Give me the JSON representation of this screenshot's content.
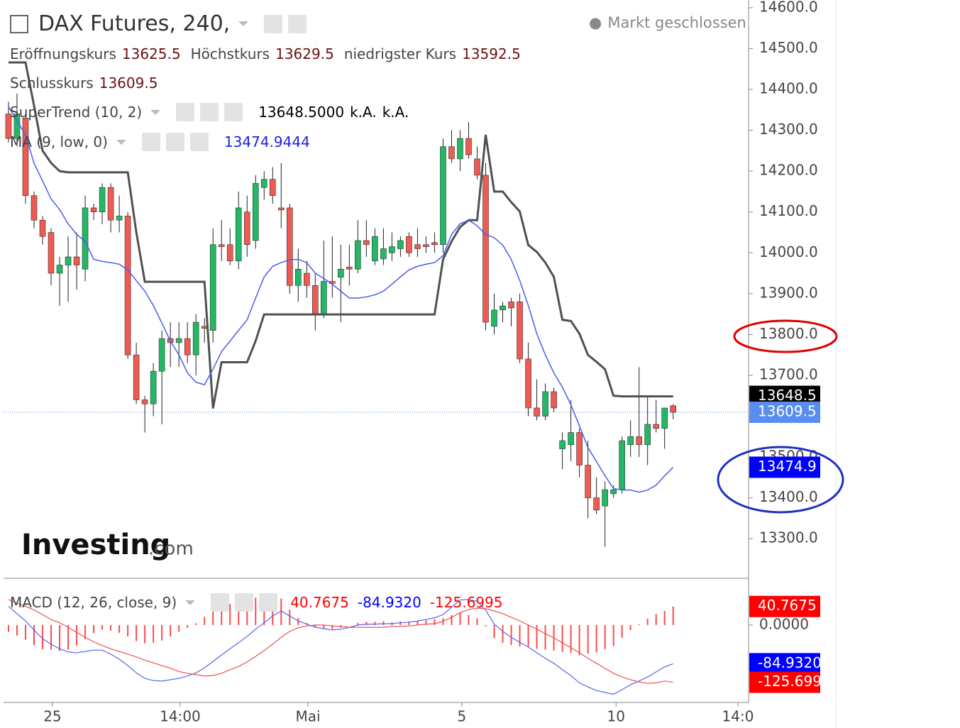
{
  "chart_data": [
    {
      "type": "candlestick",
      "title": "DAX Futures, 240,",
      "status": "Markt geschlossen",
      "ohlc_legend": [
        {
          "name": "Eröffnungskurs",
          "value": 13625.5
        },
        {
          "name": "Höchstkurs",
          "value": 13629.5
        },
        {
          "name": "niedrigster Kurs",
          "value": 13592.5
        },
        {
          "name": "Schlusskurs",
          "value": 13609.5
        }
      ],
      "up_color": "#22b866",
      "down_color": "#ef5a52",
      "open": [
        14340,
        14280,
        14330,
        14140,
        14080,
        14050,
        13950,
        13970,
        13990,
        13960,
        14110,
        14100,
        14160,
        14080,
        14090,
        13750,
        13640,
        13630,
        13710,
        13790,
        13780,
        13790,
        13750,
        13820,
        13810,
        14020,
        14020,
        13980,
        14100,
        14030,
        14160,
        14180,
        14110,
        14110,
        13920,
        13950,
        13920,
        13850,
        13930,
        13940,
        13965,
        13960,
        14030,
        13980,
        13985,
        14000,
        14010,
        14040,
        14020,
        14020,
        14025,
        14020,
        14260,
        14230,
        14280,
        14230,
        14190,
        13820,
        13860,
        13880,
        13880,
        13740,
        13620,
        13600,
        13660,
        13520,
        13530,
        13560,
        13480,
        13400,
        13380,
        13410,
        13420,
        13530,
        13550,
        13530,
        13580,
        13570,
        13625.5
      ],
      "high": [
        14370,
        14390,
        14340,
        14150,
        14090,
        14060,
        13990,
        14040,
        14050,
        14140,
        14120,
        14170,
        14170,
        14140,
        14100,
        13780,
        13650,
        13730,
        13810,
        13830,
        13830,
        13830,
        13850,
        13840,
        14060,
        14080,
        14060,
        14150,
        14140,
        14190,
        14200,
        14210,
        14220,
        14120,
        14010,
        13980,
        13950,
        14030,
        14040,
        14020,
        14020,
        14080,
        14080,
        14060,
        14060,
        14050,
        14040,
        14050,
        14060,
        14040,
        14050,
        14280,
        14300,
        14300,
        14320,
        14260,
        14220,
        13900,
        13880,
        13890,
        13900,
        13780,
        13690,
        13680,
        13670,
        13560,
        13640,
        13570,
        13540,
        13450,
        13440,
        13430,
        13550,
        13590,
        13720,
        13650,
        13640,
        13620,
        13629.5
      ],
      "low": [
        14270,
        14260,
        14120,
        14060,
        14020,
        13920,
        13870,
        13880,
        13910,
        13930,
        14080,
        14070,
        14050,
        14050,
        13740,
        13630,
        13560,
        13600,
        13580,
        13720,
        13720,
        13730,
        13700,
        13780,
        13780,
        13980,
        13970,
        13960,
        13990,
        14010,
        14130,
        14120,
        14060,
        13900,
        13880,
        13890,
        13810,
        13840,
        13890,
        13830,
        13920,
        13950,
        13990,
        13970,
        13970,
        13980,
        13990,
        13990,
        13990,
        14000,
        14000,
        14000,
        14220,
        14200,
        14230,
        14180,
        13810,
        13800,
        13830,
        13820,
        13730,
        13600,
        13590,
        13590,
        13610,
        13470,
        13490,
        13450,
        13350,
        13360,
        13280,
        13400,
        13410,
        13500,
        13500,
        13480,
        13560,
        13520,
        13592.5
      ],
      "close": [
        14280,
        14340,
        14140,
        14080,
        14040,
        13950,
        13970,
        13990,
        13970,
        14110,
        14100,
        14160,
        14080,
        14090,
        13750,
        13640,
        13630,
        13710,
        13790,
        13780,
        13790,
        13750,
        13830,
        13815,
        14020,
        14015,
        13980,
        14110,
        14020,
        14170,
        14180,
        14140,
        14105,
        13920,
        13960,
        13920,
        13850,
        13930,
        13925,
        13960,
        13960,
        14030,
        14020,
        14040,
        14010,
        14015,
        14030,
        14000,
        14010,
        14015,
        14020,
        14260,
        14230,
        14280,
        14240,
        14190,
        13830,
        13860,
        13870,
        13865,
        13740,
        13620,
        13600,
        13660,
        13620,
        13540,
        13560,
        13480,
        13400,
        13370,
        13420,
        13420,
        13540,
        13550,
        13530,
        13580,
        13570,
        13620,
        13609.5
      ],
      "series": [
        {
          "name": "SuperTrend (10, 2)",
          "color": "#505050",
          "legend_values": [
            {
              "value": 13648.5,
              "label": "13648.5000"
            },
            "k.A.",
            "k.A."
          ],
          "values": [
            14466,
            14466,
            14466,
            14360,
            14250,
            14220,
            14200,
            14197,
            14197,
            14197,
            14197,
            14197,
            14197,
            14197,
            14197,
            14050,
            13929,
            13929,
            13929,
            13929,
            13929,
            13929,
            13929,
            13929,
            13619,
            13732,
            13732,
            13732,
            13732,
            13784,
            13849,
            13849,
            13849,
            13849,
            13849,
            13849,
            13849,
            13849,
            13849,
            13849,
            13849,
            13849,
            13849,
            13849,
            13849,
            13849,
            13849,
            13849,
            13849,
            13849,
            13849,
            13984,
            14028,
            14063,
            14080,
            14080,
            14289,
            14150,
            14150,
            14124,
            14101,
            14019,
            14002,
            13976,
            13941,
            13836,
            13833,
            13802,
            13750,
            13733,
            13715,
            13650,
            13648.5,
            13648.5,
            13648.5,
            13648.5,
            13648.5,
            13648.5,
            13648.5
          ]
        },
        {
          "name": "MA (9, low, 0)",
          "color": "#4a5cf0",
          "legend_values": [
            13474.9444
          ],
          "values": [
            14358,
            14323,
            14289,
            14219,
            14176,
            14132,
            14106,
            14071,
            14045,
            14028,
            13984,
            13979,
            13976,
            13972,
            13958,
            13932,
            13906,
            13871,
            13828,
            13784,
            13750,
            13706,
            13683,
            13677,
            13715,
            13758,
            13784,
            13810,
            13836,
            13889,
            13941,
            13967,
            13976,
            13983,
            13984,
            13976,
            13950,
            13937,
            13923,
            13906,
            13889,
            13889,
            13892,
            13897,
            13906,
            13923,
            13941,
            13958,
            13967,
            13972,
            13976,
            13993,
            14045,
            14071,
            14080,
            14066,
            14045,
            14037,
            14019,
            13984,
            13932,
            13871,
            13802,
            13750,
            13706,
            13671,
            13628,
            13576,
            13523,
            13489,
            13454,
            13423,
            13419,
            13419,
            13414,
            13419,
            13431,
            13454,
            13474.9444
          ]
        }
      ],
      "price_labels": [
        {
          "value": 13648.5,
          "color": "#000000"
        },
        {
          "value": 13609.5,
          "color": "#5a8df0"
        },
        {
          "value": 13474.9,
          "color": "#0000ff"
        }
      ],
      "ylim": [
        13203,
        14619
      ],
      "yticks": [
        {
          "value": 14600,
          "label": "14600.0"
        },
        {
          "value": 14500,
          "label": "14500.0"
        },
        {
          "value": 14400,
          "label": "14400.0"
        },
        {
          "value": 14300,
          "label": "14300.0"
        },
        {
          "value": 14200,
          "label": "14200.0"
        },
        {
          "value": 14100,
          "label": "14100.0"
        },
        {
          "value": 14000,
          "label": "14000.0"
        },
        {
          "value": 13900,
          "label": "13900.0"
        },
        {
          "value": 13800,
          "label": "13800.0"
        },
        {
          "value": 13700,
          "label": "13700.0"
        },
        {
          "value": 13600,
          "label": "13600.0"
        },
        {
          "value": 13500,
          "label": "13500.0"
        },
        {
          "value": 13400,
          "label": "13400.0"
        },
        {
          "value": 13300,
          "label": "13300.0"
        }
      ],
      "watermark": {
        "brand": "Investing",
        "suffix": ".com"
      }
    },
    {
      "type": "macd",
      "title": "MACD (12, 26, close, 9)",
      "legend_values": [
        {
          "value": 40.7675,
          "color": "#ff0000"
        },
        {
          "value": -84.932,
          "label": "-84.9320",
          "color": "#0000ff"
        },
        {
          "value": -125.6995,
          "color": "#ff0000"
        }
      ],
      "histogram": {
        "color": "#ff4a4a",
        "values": [
          -15,
          -23,
          -32,
          -44,
          -53,
          -54,
          -57,
          -54,
          -45,
          -31,
          -18,
          -10,
          -12,
          -17,
          -25,
          -35,
          -40,
          -39,
          -34,
          -25,
          -15,
          -6,
          4,
          18,
          31,
          40,
          46,
          52,
          56,
          60,
          61,
          62,
          58,
          34,
          15,
          4,
          -5,
          -8,
          -9,
          -6,
          0,
          5,
          7,
          7,
          8,
          6,
          8,
          8,
          9,
          10,
          13,
          15,
          22,
          28,
          22,
          15,
          -3,
          -29,
          -39,
          -44,
          -47,
          -48,
          -52,
          -54,
          -56,
          -59,
          -61,
          -66,
          -63,
          -60,
          -53,
          -46,
          -28,
          -11,
          2,
          14,
          24,
          31,
          40.7675
        ]
      },
      "macd": {
        "color": "#5566ee",
        "values": [
          41,
          25,
          9,
          -11,
          -30,
          -42,
          -52,
          -59,
          -61,
          -58,
          -55,
          -55,
          -64,
          -75,
          -89,
          -105,
          -117,
          -122,
          -123,
          -120,
          -117,
          -112,
          -105,
          -94,
          -80,
          -66,
          -52,
          -39,
          -25,
          -9,
          5,
          20,
          31,
          20,
          9,
          2,
          -5,
          -8,
          -11,
          -9,
          -5,
          0,
          2,
          2,
          3,
          3,
          5,
          6,
          9,
          12,
          16,
          23,
          39,
          55,
          56,
          52,
          33,
          2,
          -14,
          -27,
          -38,
          -48,
          -61,
          -73,
          -84,
          -98,
          -111,
          -127,
          -136,
          -144,
          -148,
          -152,
          -142,
          -131,
          -123,
          -114,
          -103,
          -92,
          -84.932
        ]
      },
      "signal": {
        "color": "#f05050",
        "values": [
          56,
          48,
          41,
          33,
          23,
          12,
          5,
          -5,
          -16,
          -27,
          -37,
          -45,
          -52,
          -58,
          -64,
          -70,
          -77,
          -83,
          -89,
          -95,
          -102,
          -106,
          -109,
          -112,
          -111,
          -106,
          -98,
          -91,
          -81,
          -69,
          -56,
          -42,
          -27,
          -14,
          -6,
          -2,
          0,
          0,
          -2,
          -3,
          -5,
          -5,
          -5,
          -5,
          -5,
          -3,
          -3,
          -2,
          0,
          2,
          3,
          8,
          17,
          27,
          34,
          37,
          36,
          31,
          25,
          17,
          9,
          0,
          -9,
          -19,
          -28,
          -39,
          -50,
          -61,
          -73,
          -84,
          -95,
          -106,
          -114,
          -120,
          -125,
          -128,
          -127,
          -123,
          -125.6995
        ]
      },
      "ylim": [
        -170,
        98
      ],
      "yticks": [
        {
          "value": 0,
          "label": "0.0000"
        }
      ],
      "xlim": [
        -0.58,
        86.85
      ],
      "xticks": [
        {
          "value": 5.16,
          "label": "25"
        },
        {
          "value": 20.15,
          "label": "14:00"
        },
        {
          "value": 35.14,
          "label": "Mai"
        },
        {
          "value": 53.2,
          "label": "5"
        },
        {
          "value": 71.3,
          "label": "10"
        },
        {
          "value": 85.6,
          "label": "14:0"
        }
      ]
    }
  ]
}
